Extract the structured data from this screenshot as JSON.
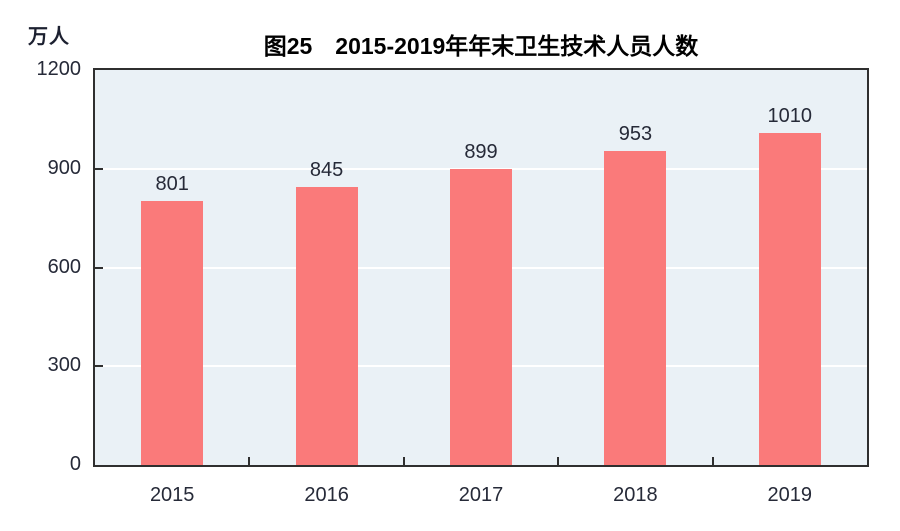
{
  "chart_data": {
    "type": "bar",
    "title": "图25　2015-2019年年末卫生技术人员人数",
    "ylabel": "万人",
    "xlabel": "",
    "categories": [
      "2015",
      "2016",
      "2017",
      "2018",
      "2019"
    ],
    "values": [
      801,
      845,
      899,
      953,
      1010
    ],
    "ylim": [
      0,
      1200
    ],
    "yticks": [
      0,
      300,
      600,
      900,
      1200
    ],
    "gridlines": [
      300,
      600,
      900
    ],
    "grid": "horizontal",
    "legend_position": "none",
    "colors": {
      "bar": "#fa7a7a",
      "plot_background": "#eaf1f6",
      "gridline": "#ffffff",
      "axis": "#2f2f2f",
      "tick_label": "#262a38",
      "title": "#000000"
    }
  }
}
